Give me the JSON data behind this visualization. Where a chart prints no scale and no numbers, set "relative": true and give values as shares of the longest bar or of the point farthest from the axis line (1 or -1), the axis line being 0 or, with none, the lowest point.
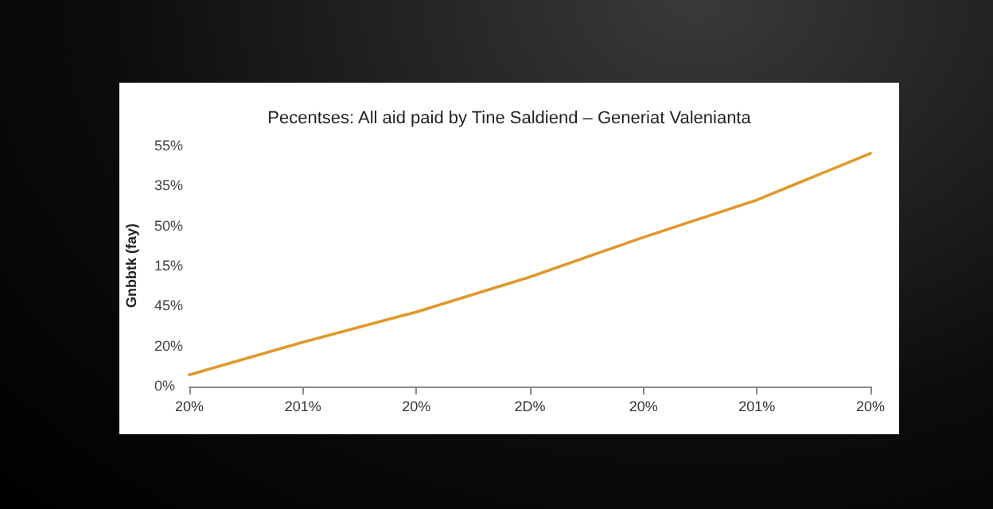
{
  "chart_data": {
    "type": "line",
    "title": "Pecentses: All aid paid by Tine Saldiend – Generiat Valenianta",
    "ylabel": "Gnbbtk (fay)",
    "categories": [
      "20%",
      "201%",
      "20%",
      "2D%",
      "20%",
      "201%",
      "20%"
    ],
    "series": [
      {
        "color": "#e0982c",
        "values": [
          0.05,
          0.19,
          0.32,
          0.47,
          0.64,
          0.8,
          1
        ]
      }
    ],
    "relative": true,
    "annotations": [
      "0%",
      "20%",
      "45%",
      "15%",
      "50%",
      "35%",
      "55%"
    ],
    "marker": "none",
    "line_style": "solid"
  }
}
